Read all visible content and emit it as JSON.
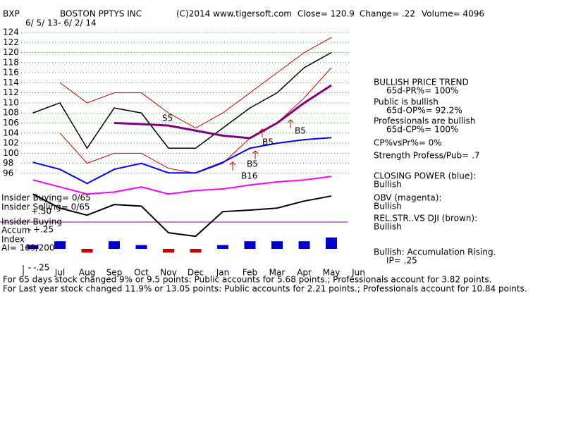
{
  "chart_data": {
    "type": "line",
    "symbol": "BXP",
    "title": "BOSTON PPTYS INC",
    "source": "(C)2014 www.tigersoft.com",
    "close": "Close= 120.9",
    "change": "Change= .22",
    "volume": "Volume= 4096",
    "subtitle": "6/ 5/ 13- 6/ 2/ 14",
    "categories": [
      null,
      "Jul",
      "Aug",
      "Sep",
      "Oct",
      "Nov",
      "Dec",
      "Jan",
      "Feb",
      "Mar",
      "Apr",
      "May",
      "Jun"
    ],
    "ylim": [
      80,
      125
    ],
    "yticks": [
      96,
      98,
      100,
      102,
      104,
      106,
      108,
      110,
      112,
      114,
      116,
      118,
      120,
      122,
      124
    ],
    "y2lim": [
      -0.25,
      0.25
    ],
    "y2ticks": [
      {
        "value": 0.25,
        "label": "+.25"
      },
      {
        "value": -0.25,
        "label": "-.25"
      }
    ],
    "grid": true,
    "series": [
      {
        "name": "Upper Band",
        "color": "#cc0000",
        "values": [
          null,
          114,
          110,
          112,
          112,
          108,
          105,
          108,
          112,
          116,
          120,
          123,
          null
        ]
      },
      {
        "name": "Lower Band",
        "color": "#cc0000",
        "values": [
          null,
          104,
          98,
          100,
          100,
          97,
          96,
          98,
          103,
          106,
          111,
          117,
          null
        ]
      },
      {
        "name": "Price",
        "color": "#000000",
        "values": [
          108,
          110,
          101,
          109,
          108,
          101,
          101,
          105,
          109,
          112,
          117,
          120,
          null
        ]
      },
      {
        "name": "Moving Average",
        "color": "#800080",
        "values": [
          null,
          null,
          null,
          106,
          105.8,
          105.5,
          104.5,
          103.5,
          103,
          106,
          110,
          113.5,
          null
        ]
      },
      {
        "name": "Closing Power",
        "color": "#0000ff",
        "values": [
          98.2,
          96.8,
          94,
          96.8,
          98,
          96.1,
          96.1,
          98.2,
          101,
          102,
          102.7,
          103.1,
          null
        ]
      },
      {
        "name": "OBV",
        "color": "#ff00ff",
        "values": [
          94.7,
          93.3,
          91.9,
          92.3,
          93.3,
          91.9,
          92.6,
          92.9,
          93.7,
          94.3,
          94.7,
          95.4,
          null
        ]
      },
      {
        "name": "Rel Str",
        "color": "#000000",
        "values": [
          91.9,
          89.1,
          87.7,
          89.8,
          89.5,
          84.2,
          83.5,
          88.4,
          88.7,
          89.1,
          90.5,
          91.5,
          null
        ]
      },
      {
        "name": "Accum",
        "color": "#0000cc",
        "axis": "y2",
        "style": "bar",
        "values": [
          0.05,
          0.1,
          -0.05,
          0.1,
          0.05,
          -0.05,
          -0.05,
          0.05,
          0.1,
          0.1,
          0.1,
          0.15,
          null
        ]
      }
    ],
    "annotations": [
      "S5",
      "B5",
      "B5",
      "B5",
      "B16"
    ],
    "left_notes": [
      "Insider Buying= 0/65",
      "Insider Selling= 0/65",
      "+.50",
      "Insider Buying",
      "Accum",
      "Index",
      "AI= 169/200"
    ],
    "notes": [
      "BULLISH PRICE TREND",
      "65d-PR%= 100%",
      "Public is bullish",
      "65d-OP%= 92.2%",
      "Professionals are bullish",
      "65d-CP%= 100%",
      "CP%vsPr%=  0%",
      "Strength Profess/Pub= .7",
      "CLOSING POWER (blue):",
      "Bullish",
      "OBV (magenta):",
      "Bullish",
      "REL.STR..VS DJI (brown):",
      "Bullish",
      "Bullish: Accumulation Rising.",
      "IP=  .25"
    ],
    "footer": [
      "For 65 days stock changed  9% or  9.5 points:  Public accounts for  5.68 points.;  Professionals account for  3.82 points.",
      "For Last year stock changed  11.9% or  13.05 points:  Public accounts for  2.21 points.;  Professionals account for  10.84 points."
    ]
  }
}
